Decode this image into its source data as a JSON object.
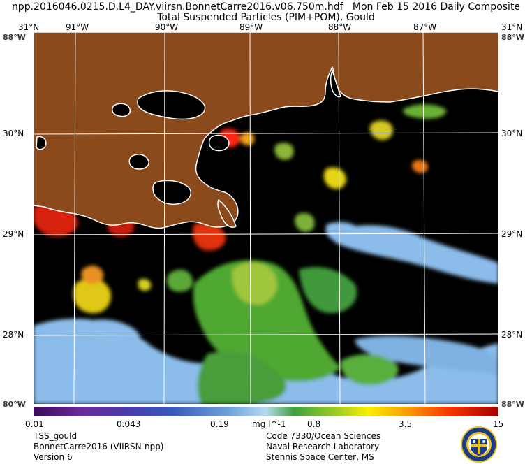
{
  "header": {
    "line1": "npp.2016046.0215.D.L4_DAY.viirsn.BonnetCarre2016.v06.750m.hdf   Mon Feb 15 2016 Daily Composite",
    "line2": "Total Suspended Particles (PIM+POM), Gould"
  },
  "map": {
    "lon_labels": [
      "31°N",
      "91°W",
      "90°W",
      "89°W",
      "88°W",
      "87°W",
      "31°N"
    ],
    "lat_labels_left": [
      "30°N",
      "29°N",
      "28°N"
    ],
    "lat_labels_right": [
      "30°N",
      "29°N",
      "28°N"
    ],
    "corner_labels": {
      "top_left": "88°W",
      "top_right": "88°W",
      "bottom_left": "80°W",
      "bottom_right": "88°W"
    },
    "colors": {
      "land": "#8b4a1c",
      "water": "#000000",
      "coastline": "#ffffff",
      "grid": "#ffffff"
    }
  },
  "colorbar": {
    "tick_labels": [
      "0.01",
      "0.043",
      "0.19",
      "mg l^-1",
      "0.8",
      "3.5",
      "15"
    ],
    "scale": "log",
    "range": [
      0.01,
      15
    ]
  },
  "footer": {
    "left": [
      "TSS_gould",
      "BonnetCarre2016 (VIIRSN-npp)",
      "Version 6"
    ],
    "right": [
      "Code 7330/Ocean Sciences",
      "Naval Research Laboratory",
      "Stennis Space Center, MS"
    ]
  }
}
